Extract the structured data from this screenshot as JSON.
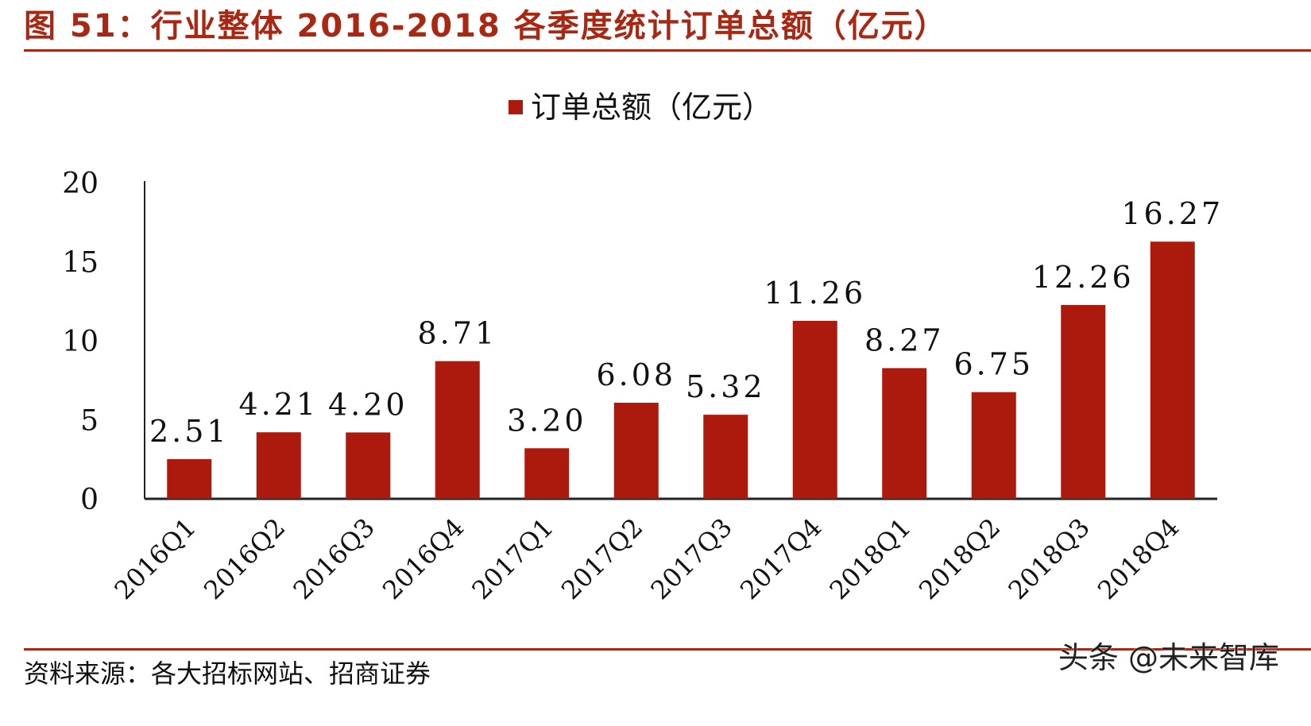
{
  "figure": {
    "title": "图 51：行业整体 2016-2018 各季度统计订单总额（亿元）",
    "source": "资料来源：各大招标网站、招商证券",
    "watermark": "头条 @未来智库"
  },
  "colors": {
    "accent": "#a82814",
    "bar": "#ac1a0d"
  },
  "chart_data": {
    "type": "bar",
    "title": "",
    "xlabel": "",
    "ylabel": "",
    "ylim": [
      0,
      20
    ],
    "yticks": [
      0,
      5,
      10,
      15,
      20
    ],
    "grid": false,
    "legend": "top-center",
    "categories": [
      "2016Q1",
      "2016Q2",
      "2016Q3",
      "2016Q4",
      "2017Q1",
      "2017Q2",
      "2017Q3",
      "2017Q4",
      "2018Q1",
      "2018Q2",
      "2018Q3",
      "2018Q4"
    ],
    "series": [
      {
        "name": "订单总额（亿元）",
        "values": [
          2.51,
          4.21,
          4.2,
          8.71,
          3.2,
          6.08,
          5.32,
          11.26,
          8.27,
          6.75,
          12.26,
          16.27
        ],
        "labels": [
          "2.51",
          "4.21",
          "4.20",
          "8.71",
          "3.20",
          "6.08",
          "5.32",
          "11.26",
          "8.27",
          "6.75",
          "12.26",
          "16.27"
        ]
      }
    ]
  }
}
